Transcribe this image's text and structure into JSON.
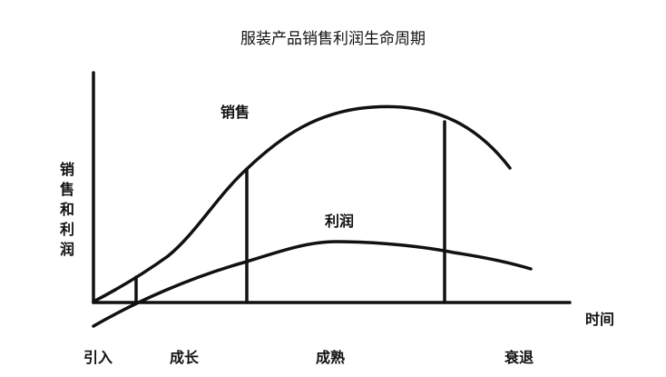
{
  "title": "服装产品销售利润生命周期",
  "y_axis_label": "销售和利润",
  "x_axis_label": "时间",
  "curves": {
    "sales": "销售",
    "profit": "利润"
  },
  "stages": [
    "引入",
    "成长",
    "成熟",
    "衰退"
  ],
  "line_color": "#111111"
}
